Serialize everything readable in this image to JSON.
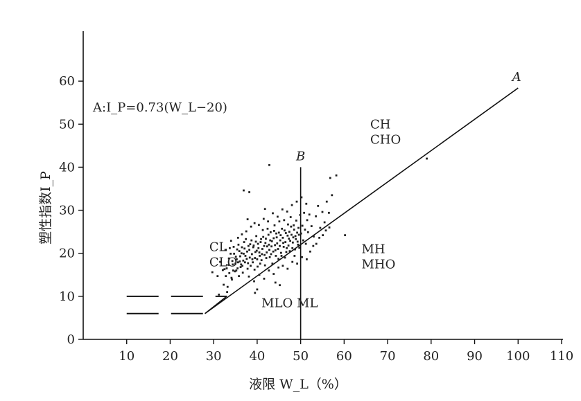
{
  "chart_data": {
    "type": "scatter",
    "xlabel": "液限 W_L（%）",
    "ylabel": "塑性指数I_P",
    "xlim": [
      0,
      110
    ],
    "ylim": [
      0,
      70
    ],
    "xticks": [
      10,
      20,
      30,
      40,
      50,
      60,
      70,
      80,
      90,
      100,
      110
    ],
    "yticks": [
      0,
      10,
      20,
      30,
      40,
      50,
      60
    ],
    "grid": false,
    "formula": "A:I_P=0.73(W_L−20)",
    "a_line": {
      "label": "A",
      "points": [
        [
          28,
          6
        ],
        [
          100,
          58.4
        ]
      ]
    },
    "b_line": {
      "label": "B",
      "points": [
        [
          50,
          0
        ],
        [
          50,
          40
        ]
      ]
    },
    "dashed_lines": [
      {
        "points": [
          [
            10,
            10
          ],
          [
            33,
            10
          ]
        ]
      },
      {
        "points": [
          [
            10,
            6
          ],
          [
            28,
            6
          ]
        ]
      }
    ],
    "zone_labels": [
      {
        "lines": [
          "CL",
          "CLO"
        ],
        "x": 29,
        "y": 20.5
      },
      {
        "lines": [
          "CH",
          "CHO"
        ],
        "x": 66,
        "y": 49
      },
      {
        "lines": [
          "MH",
          "MHO"
        ],
        "x": 64,
        "y": 20
      },
      {
        "lines": [
          "MLO ML"
        ],
        "x": 41,
        "y": 7.5
      }
    ],
    "points": [
      [
        32.1,
        16.1
      ],
      [
        32.3,
        12.7
      ],
      [
        32.5,
        16.3
      ],
      [
        32.8,
        14.7
      ],
      [
        33.0,
        16.5
      ],
      [
        33.2,
        12.2
      ],
      [
        33.4,
        17.3
      ],
      [
        33.6,
        15.4
      ],
      [
        33.9,
        19.9
      ],
      [
        34.1,
        14.3
      ],
      [
        34.3,
        18.2
      ],
      [
        34.5,
        16.0
      ],
      [
        34.7,
        19.9
      ],
      [
        35.0,
        17.6
      ],
      [
        35.2,
        16.0
      ],
      [
        35.4,
        20.9
      ],
      [
        35.6,
        17.9
      ],
      [
        35.8,
        14.7
      ],
      [
        36.1,
        19.3
      ],
      [
        36.3,
        17.4
      ],
      [
        36.5,
        21.4
      ],
      [
        36.7,
        15.5
      ],
      [
        36.9,
        19.9
      ],
      [
        37.2,
        17.9
      ],
      [
        37.4,
        23.3
      ],
      [
        37.6,
        18.7
      ],
      [
        37.8,
        16.4
      ],
      [
        38.0,
        21.7
      ],
      [
        38.3,
        19.0
      ],
      [
        38.5,
        17.1
      ],
      [
        38.7,
        23.0
      ],
      [
        38.9,
        18.6
      ],
      [
        39.1,
        21.4
      ],
      [
        39.4,
        16.2
      ],
      [
        39.6,
        20.3
      ],
      [
        39.8,
        24.0
      ],
      [
        40.0,
        18.6
      ],
      [
        40.2,
        22.2
      ],
      [
        40.5,
        20.2
      ],
      [
        40.7,
        17.6
      ],
      [
        40.9,
        23.3
      ],
      [
        41.1,
        19.8
      ],
      [
        41.3,
        25.4
      ],
      [
        41.6,
        21.7
      ],
      [
        41.8,
        17.2
      ],
      [
        42.0,
        23.4
      ],
      [
        42.2,
        20.2
      ],
      [
        42.4,
        25.7
      ],
      [
        42.7,
        22.0
      ],
      [
        42.9,
        19.1
      ],
      [
        43.1,
        24.9
      ],
      [
        43.3,
        21.6
      ],
      [
        43.5,
        17.6
      ],
      [
        43.8,
        23.5
      ],
      [
        44.0,
        26.5
      ],
      [
        44.2,
        20.7
      ],
      [
        44.4,
        24.6
      ],
      [
        44.6,
        22.3
      ],
      [
        44.9,
        18.7
      ],
      [
        45.1,
        27.4
      ],
      [
        45.3,
        23.0
      ],
      [
        45.5,
        20.1
      ],
      [
        45.7,
        25.7
      ],
      [
        46.0,
        22.4
      ],
      [
        46.2,
        27.7
      ],
      [
        46.4,
        19.0
      ],
      [
        46.6,
        24.7
      ],
      [
        46.8,
        21.2
      ],
      [
        47.1,
        26.7
      ],
      [
        47.3,
        23.4
      ],
      [
        47.5,
        20.5
      ],
      [
        47.7,
        28.4
      ],
      [
        47.9,
        24.3
      ],
      [
        48.2,
        22.5
      ],
      [
        48.4,
        26.5
      ],
      [
        48.6,
        19.4
      ],
      [
        48.8,
        24.0
      ],
      [
        49.0,
        27.6
      ],
      [
        49.3,
        22.7
      ],
      [
        49.5,
        25.9
      ],
      [
        49.7,
        21.3
      ],
      [
        49.9,
        28.9
      ],
      [
        50.1,
        24.6
      ],
      [
        50.4,
        26.4
      ],
      [
        50.6,
        23.0
      ],
      [
        50.8,
        29.4
      ],
      [
        51.0,
        25.5
      ],
      [
        51.2,
        22.2
      ],
      [
        51.5,
        27.7
      ],
      [
        51.7,
        24.9
      ],
      [
        52.0,
        29.0
      ],
      [
        52.5,
        26.3
      ],
      [
        53.0,
        23.9
      ],
      [
        53.5,
        28.6
      ],
      [
        54.0,
        31.0
      ],
      [
        54.5,
        25.9
      ],
      [
        55.0,
        29.6
      ],
      [
        55.5,
        27.2
      ],
      [
        56.0,
        32.0
      ],
      [
        56.5,
        29.4
      ],
      [
        35.3,
        18.6
      ],
      [
        35.9,
        20.5
      ],
      [
        36.2,
        16.8
      ],
      [
        36.8,
        18.3
      ],
      [
        37.1,
        21.1
      ],
      [
        37.3,
        19.4
      ],
      [
        37.7,
        20.4
      ],
      [
        37.9,
        17.7
      ],
      [
        38.2,
        20.8
      ],
      [
        38.4,
        22.1
      ],
      [
        38.8,
        19.8
      ],
      [
        39.0,
        17.9
      ],
      [
        39.2,
        21.8
      ],
      [
        39.5,
        18.9
      ],
      [
        39.7,
        22.7
      ],
      [
        39.9,
        20.6
      ],
      [
        40.1,
        16.9
      ],
      [
        40.3,
        21.2
      ],
      [
        40.6,
        19.4
      ],
      [
        40.8,
        22.6
      ],
      [
        41.0,
        18.4
      ],
      [
        41.2,
        21.0
      ],
      [
        41.4,
        23.8
      ],
      [
        41.7,
        19.6
      ],
      [
        41.9,
        22.4
      ],
      [
        42.1,
        18.9
      ],
      [
        42.3,
        21.6
      ],
      [
        42.6,
        24.3
      ],
      [
        42.8,
        20.8
      ],
      [
        43.0,
        23.0
      ],
      [
        43.2,
        19.8
      ],
      [
        43.4,
        22.8
      ],
      [
        43.7,
        20.4
      ],
      [
        43.9,
        25.2
      ],
      [
        44.1,
        21.9
      ],
      [
        44.3,
        19.4
      ],
      [
        44.5,
        23.7
      ],
      [
        44.8,
        21.0
      ],
      [
        45.0,
        24.8
      ],
      [
        45.2,
        21.7
      ],
      [
        45.4,
        24.2
      ],
      [
        45.6,
        19.4
      ],
      [
        45.9,
        23.6
      ],
      [
        46.1,
        21.5
      ],
      [
        46.3,
        25.3
      ],
      [
        46.5,
        22.6
      ],
      [
        46.7,
        20.3
      ],
      [
        47.0,
        24.1
      ],
      [
        47.2,
        21.8
      ],
      [
        47.4,
        25.0
      ],
      [
        47.6,
        22.9
      ],
      [
        47.8,
        26.2
      ],
      [
        48.1,
        21.2
      ],
      [
        48.3,
        23.7
      ],
      [
        48.5,
        25.5
      ],
      [
        48.7,
        20.9
      ],
      [
        48.9,
        23.3
      ],
      [
        49.2,
        24.8
      ],
      [
        49.4,
        22.0
      ],
      [
        49.6,
        24.3
      ],
      [
        34.4,
        17.4
      ],
      [
        34.6,
        21.5
      ],
      [
        34.9,
        15.8
      ],
      [
        35.1,
        19.2
      ],
      [
        35.5,
        16.5
      ],
      [
        35.7,
        22.0
      ],
      [
        36.0,
        18.1
      ],
      [
        36.4,
        20.0
      ],
      [
        36.6,
        17.1
      ],
      [
        37.0,
        22.6
      ],
      [
        33.5,
        18.8
      ],
      [
        33.7,
        21.2
      ],
      [
        34.0,
        22.9
      ],
      [
        34.2,
        13.9
      ],
      [
        35.6,
        23.6
      ],
      [
        36.5,
        24.4
      ],
      [
        37.5,
        25.1
      ],
      [
        38.6,
        26.2
      ],
      [
        39.4,
        27.0
      ],
      [
        40.4,
        26.6
      ],
      [
        41.5,
        28.0
      ],
      [
        42.5,
        27.4
      ],
      [
        43.6,
        29.3
      ],
      [
        44.7,
        28.5
      ],
      [
        45.8,
        30.2
      ],
      [
        46.9,
        29.7
      ],
      [
        48.0,
        31.2
      ],
      [
        49.1,
        32.0
      ],
      [
        50.2,
        33.0
      ],
      [
        51.3,
        31.5
      ],
      [
        38.1,
        14.6
      ],
      [
        39.3,
        13.5
      ],
      [
        40.5,
        15.0
      ],
      [
        41.6,
        14.1
      ],
      [
        42.7,
        16.0
      ],
      [
        43.8,
        15.2
      ],
      [
        44.9,
        16.7
      ],
      [
        45.9,
        17.1
      ],
      [
        47.0,
        16.4
      ],
      [
        48.1,
        18.0
      ],
      [
        49.2,
        17.6
      ],
      [
        50.3,
        19.1
      ],
      [
        51.4,
        18.6
      ],
      [
        52.2,
        20.4
      ],
      [
        52.9,
        21.7
      ],
      [
        53.6,
        22.2
      ],
      [
        54.3,
        23.6
      ],
      [
        55.1,
        24.2
      ],
      [
        55.8,
        25.3
      ],
      [
        56.6,
        26.0
      ],
      [
        42.8,
        40.5
      ],
      [
        38.2,
        34.2
      ],
      [
        36.9,
        34.6
      ],
      [
        56.8,
        37.5
      ],
      [
        57.2,
        33.5
      ],
      [
        58.2,
        38.1
      ],
      [
        79.0,
        42.0
      ],
      [
        60.2,
        24.2
      ],
      [
        39.5,
        10.8
      ],
      [
        45.2,
        12.6
      ],
      [
        40.0,
        11.6
      ],
      [
        44.2,
        13.2
      ],
      [
        33.1,
        11.0
      ],
      [
        30.9,
        14.7
      ],
      [
        31.5,
        18.0
      ],
      [
        32.7,
        20.8
      ],
      [
        29.7,
        15.6
      ],
      [
        31.2,
        10.4
      ],
      [
        37.8,
        27.9
      ],
      [
        41.8,
        30.3
      ]
    ]
  }
}
